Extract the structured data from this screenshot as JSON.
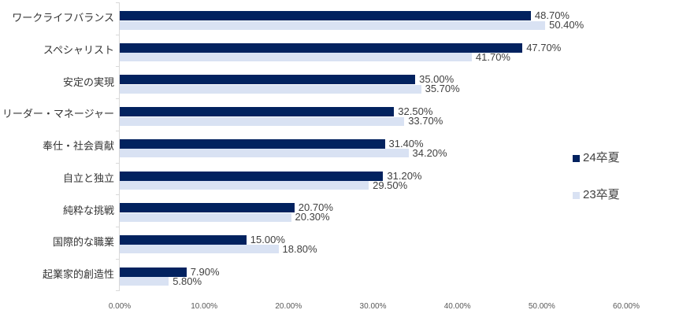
{
  "chart_data": {
    "type": "bar",
    "orientation": "horizontal",
    "title": "",
    "categories": [
      "ワークライフバランス",
      "スペシャリスト",
      "安定の実現",
      "リーダー・マネージャー",
      "奉仕・社会貢献",
      "自立と独立",
      "純粋な挑戦",
      "国際的な職業",
      "起業家的創造性"
    ],
    "series": [
      {
        "name": "24卒夏",
        "color": "#02225f",
        "values": [
          48.7,
          47.7,
          35.0,
          32.5,
          31.4,
          31.2,
          20.7,
          15.0,
          7.9
        ],
        "value_labels": [
          "48.70%",
          "47.70%",
          "35.00%",
          "32.50%",
          "31.40%",
          "31.20%",
          "20.70%",
          "15.00%",
          "7.90%"
        ]
      },
      {
        "name": "23卒夏",
        "color": "#d9e2f3",
        "values": [
          50.4,
          41.7,
          35.7,
          33.7,
          34.2,
          29.5,
          20.3,
          18.8,
          5.8
        ],
        "value_labels": [
          "50.40%",
          "41.70%",
          "35.70%",
          "33.70%",
          "34.20%",
          "29.50%",
          "20.30%",
          "18.80%",
          "5.80%"
        ]
      }
    ],
    "xlim": [
      0,
      60
    ],
    "x_ticks": [
      "0.00%",
      "10.00%",
      "20.00%",
      "30.00%",
      "40.00%",
      "50.00%",
      "60.00%"
    ],
    "legend_position": "right",
    "grid": false,
    "colors": {
      "axis_line": "#d9d9d9",
      "tick_label": "#595959",
      "data_label": "#404040",
      "category_label": "#333333",
      "background": "#ffffff"
    }
  }
}
